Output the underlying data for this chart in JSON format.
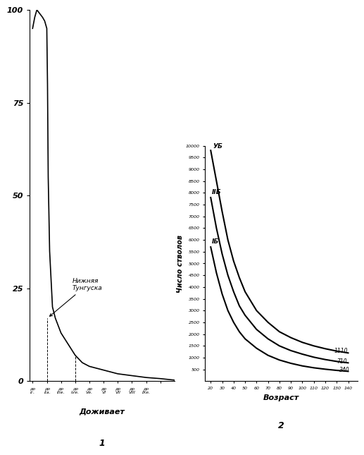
{
  "left_title_num": "1",
  "left_xlabel": "Доживает",
  "left_ylim": [
    0,
    100
  ],
  "left_yticks": [
    0,
    25,
    50,
    75,
    100
  ],
  "left_annotation": "Нижняя\nТунгуска",
  "squirrel_x": [
    0,
    0.15,
    0.3,
    0.5,
    0.7,
    0.85,
    1.0,
    1.05,
    1.1,
    1.2,
    1.4,
    1.6,
    2.0,
    2.5,
    3.0,
    3.5,
    4.0,
    5.0,
    6.0,
    7.0,
    8.0,
    9.0,
    10.0
  ],
  "squirrel_y": [
    95,
    98,
    100,
    99,
    98,
    97,
    95,
    80,
    55,
    35,
    20,
    17,
    13,
    10,
    7,
    5,
    4,
    3,
    2,
    1.5,
    1,
    0.7,
    0.3
  ],
  "right_title_num": "2",
  "right_xlabel": "Возраст",
  "right_ylabel": "Число стволов",
  "right_ylim": [
    0,
    10000
  ],
  "right_yticks": [
    500,
    1000,
    1500,
    2000,
    2500,
    3000,
    3500,
    4000,
    4500,
    5000,
    5500,
    6000,
    6500,
    7000,
    7500,
    8000,
    8500,
    9000,
    9500,
    10000
  ],
  "right_xticks": [
    20,
    30,
    40,
    50,
    60,
    70,
    80,
    90,
    100,
    110,
    120,
    130,
    140
  ],
  "ub_x": [
    20,
    25,
    30,
    35,
    40,
    45,
    50,
    60,
    70,
    80,
    90,
    100,
    110,
    120,
    130,
    140
  ],
  "ub_y": [
    9800,
    8500,
    7200,
    6000,
    5100,
    4400,
    3800,
    3000,
    2500,
    2100,
    1850,
    1650,
    1500,
    1380,
    1280,
    1200
  ],
  "iib_x": [
    20,
    25,
    30,
    35,
    40,
    45,
    50,
    60,
    70,
    80,
    90,
    100,
    110,
    120,
    130,
    140
  ],
  "iib_y": [
    7800,
    6500,
    5400,
    4500,
    3800,
    3200,
    2800,
    2200,
    1800,
    1500,
    1300,
    1150,
    1020,
    920,
    840,
    780
  ],
  "ib_x": [
    20,
    25,
    30,
    35,
    40,
    45,
    50,
    60,
    70,
    80,
    90,
    100,
    110,
    120,
    130,
    140
  ],
  "ib_y": [
    5700,
    4600,
    3700,
    3000,
    2500,
    2100,
    1800,
    1400,
    1100,
    900,
    760,
    650,
    570,
    510,
    460,
    420
  ],
  "bg_color": "#ffffff"
}
